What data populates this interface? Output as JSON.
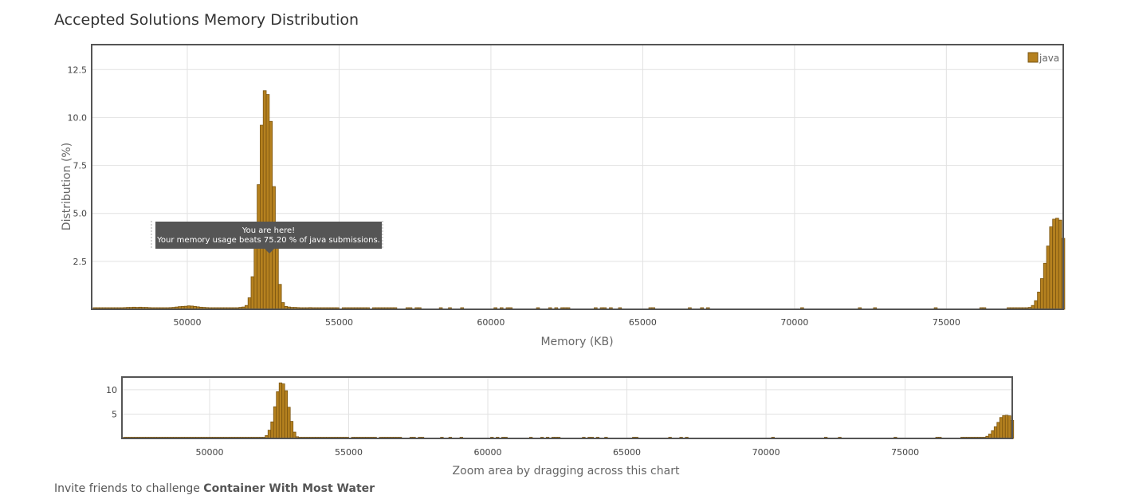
{
  "title": "Accepted Solutions Memory Distribution",
  "footer": {
    "prefix": "Invite friends to challenge ",
    "problem": "Container With Most Water"
  },
  "tooltip": {
    "line1": "You are here!",
    "line2": "Your memory usage beats 75.20 % of java submissions."
  },
  "colors": {
    "bar_fill": "#b5811f",
    "bar_stroke": "#7a5410",
    "tooltip_bg": "#555555",
    "grid": "#e2e2e2",
    "frame": "#555555"
  },
  "chart_data": [
    {
      "type": "bar",
      "title": "Accepted Solutions Memory Distribution",
      "xlabel": "Memory (KB)",
      "ylabel": "Distribution (%)",
      "xlim": [
        46850,
        78850
      ],
      "ylim": [
        0,
        13.8
      ],
      "x_ticks": [
        50000,
        55000,
        60000,
        65000,
        70000,
        75000
      ],
      "y_ticks": [
        2.5,
        5.0,
        7.5,
        10.0,
        12.5
      ],
      "x_tick_labels": [
        "50000",
        "55000",
        "60000",
        "65000",
        "70000",
        "75000"
      ],
      "y_tick_labels": [
        "2.5",
        "5.0",
        "7.5",
        "10.0",
        "12.5"
      ],
      "grid": true,
      "legend": {
        "position": "top-right",
        "entries": [
          "java"
        ]
      },
      "bin_width": 100,
      "series": [
        {
          "name": "java",
          "points": [
            [
              46900,
              0.07
            ],
            [
              47000,
              0.07
            ],
            [
              47100,
              0.06
            ],
            [
              47200,
              0.07
            ],
            [
              47300,
              0.07
            ],
            [
              47400,
              0.08
            ],
            [
              47500,
              0.07
            ],
            [
              47600,
              0.08
            ],
            [
              47700,
              0.07
            ],
            [
              47800,
              0.08
            ],
            [
              47900,
              0.09
            ],
            [
              48000,
              0.1
            ],
            [
              48100,
              0.1
            ],
            [
              48200,
              0.11
            ],
            [
              48300,
              0.1
            ],
            [
              48400,
              0.11
            ],
            [
              48500,
              0.1
            ],
            [
              48600,
              0.1
            ],
            [
              48700,
              0.09
            ],
            [
              48800,
              0.08
            ],
            [
              48900,
              0.07
            ],
            [
              49000,
              0.07
            ],
            [
              49100,
              0.07
            ],
            [
              49200,
              0.08
            ],
            [
              49300,
              0.08
            ],
            [
              49400,
              0.09
            ],
            [
              49500,
              0.1
            ],
            [
              49600,
              0.12
            ],
            [
              49700,
              0.14
            ],
            [
              49800,
              0.15
            ],
            [
              49900,
              0.16
            ],
            [
              50000,
              0.18
            ],
            [
              50100,
              0.17
            ],
            [
              50200,
              0.15
            ],
            [
              50300,
              0.13
            ],
            [
              50400,
              0.11
            ],
            [
              50500,
              0.1
            ],
            [
              50600,
              0.09
            ],
            [
              50700,
              0.08
            ],
            [
              50800,
              0.07
            ],
            [
              50900,
              0.07
            ],
            [
              51000,
              0.07
            ],
            [
              51100,
              0.06
            ],
            [
              51200,
              0.06
            ],
            [
              51300,
              0.06
            ],
            [
              51400,
              0.07
            ],
            [
              51500,
              0.07
            ],
            [
              51600,
              0.08
            ],
            [
              51700,
              0.1
            ],
            [
              51800,
              0.12
            ],
            [
              51900,
              0.2
            ],
            [
              52000,
              0.6
            ],
            [
              52100,
              1.7
            ],
            [
              52200,
              3.4
            ],
            [
              52300,
              6.5
            ],
            [
              52400,
              9.6
            ],
            [
              52500,
              11.4
            ],
            [
              52600,
              11.2
            ],
            [
              52700,
              9.8
            ],
            [
              52800,
              6.4
            ],
            [
              52900,
              3.5
            ],
            [
              53000,
              1.3
            ],
            [
              53100,
              0.35
            ],
            [
              53200,
              0.15
            ],
            [
              53300,
              0.12
            ],
            [
              53400,
              0.1
            ],
            [
              53500,
              0.1
            ],
            [
              53600,
              0.09
            ],
            [
              53700,
              0.08
            ],
            [
              53800,
              0.08
            ],
            [
              53900,
              0.08
            ],
            [
              54000,
              0.09
            ],
            [
              54100,
              0.08
            ],
            [
              54200,
              0.08
            ],
            [
              54300,
              0.07
            ],
            [
              54400,
              0.07
            ],
            [
              54500,
              0.07
            ],
            [
              54600,
              0.06
            ],
            [
              54700,
              0.06
            ],
            [
              54800,
              0.06
            ],
            [
              54900,
              0.06
            ],
            [
              55100,
              0.06
            ],
            [
              55200,
              0.06
            ],
            [
              55300,
              0.07
            ],
            [
              55400,
              0.06
            ],
            [
              55500,
              0.06
            ],
            [
              55600,
              0.06
            ],
            [
              55700,
              0.05
            ],
            [
              55800,
              0.05
            ],
            [
              55900,
              0.05
            ],
            [
              56100,
              0.05
            ],
            [
              56200,
              0.05
            ],
            [
              56300,
              0.06
            ],
            [
              56400,
              0.06
            ],
            [
              56500,
              0.05
            ],
            [
              56600,
              0.05
            ],
            [
              56700,
              0.05
            ],
            [
              56800,
              0.05
            ],
            [
              57200,
              0.05
            ],
            [
              57300,
              0.05
            ],
            [
              57500,
              0.05
            ],
            [
              57600,
              0.05
            ],
            [
              58300,
              0.05
            ],
            [
              58600,
              0.04
            ],
            [
              59000,
              0.04
            ],
            [
              60100,
              0.04
            ],
            [
              60300,
              0.04
            ],
            [
              60500,
              0.04
            ],
            [
              60600,
              0.04
            ],
            [
              61500,
              0.04
            ],
            [
              61900,
              0.04
            ],
            [
              62100,
              0.04
            ],
            [
              62300,
              0.04
            ],
            [
              62400,
              0.04
            ],
            [
              62500,
              0.04
            ],
            [
              63400,
              0.04
            ],
            [
              63600,
              0.04
            ],
            [
              63700,
              0.04
            ],
            [
              63900,
              0.04
            ],
            [
              64200,
              0.04
            ],
            [
              65200,
              0.04
            ],
            [
              65300,
              0.04
            ],
            [
              66500,
              0.04
            ],
            [
              66900,
              0.04
            ],
            [
              67100,
              0.04
            ],
            [
              70200,
              0.04
            ],
            [
              72100,
              0.04
            ],
            [
              72600,
              0.04
            ],
            [
              74600,
              0.04
            ],
            [
              76100,
              0.04
            ],
            [
              76200,
              0.04
            ],
            [
              77000,
              0.05
            ],
            [
              77100,
              0.05
            ],
            [
              77200,
              0.05
            ],
            [
              77300,
              0.05
            ],
            [
              77400,
              0.06
            ],
            [
              77500,
              0.06
            ],
            [
              77600,
              0.07
            ],
            [
              77700,
              0.1
            ],
            [
              77800,
              0.2
            ],
            [
              77900,
              0.45
            ],
            [
              78000,
              0.9
            ],
            [
              78100,
              1.6
            ],
            [
              78200,
              2.4
            ],
            [
              78300,
              3.3
            ],
            [
              78400,
              4.3
            ],
            [
              78500,
              4.7
            ],
            [
              78600,
              4.75
            ],
            [
              78700,
              4.65
            ],
            [
              78800,
              3.7
            ]
          ]
        }
      ],
      "annotation": "You are here!"
    },
    {
      "type": "bar",
      "title": "",
      "xlabel": "Zoom area by dragging across this chart",
      "ylabel": "",
      "xlim": [
        46850,
        78850
      ],
      "ylim": [
        0,
        12.6
      ],
      "x_ticks": [
        50000,
        55000,
        60000,
        65000,
        70000,
        75000
      ],
      "y_ticks": [
        5,
        10
      ],
      "x_tick_labels": [
        "50000",
        "55000",
        "60000",
        "65000",
        "70000",
        "75000"
      ],
      "y_tick_labels": [
        "5",
        "10"
      ],
      "grid": true,
      "series_ref": "java"
    }
  ]
}
